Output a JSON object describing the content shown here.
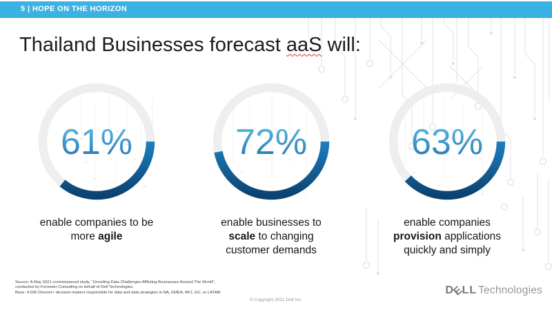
{
  "header": {
    "label": "5 | HOPE ON THE HORIZON",
    "bg_color": "#3BB2E4"
  },
  "title_rich": [
    [
      {
        "t": "Thailand Businesses forecast "
      },
      {
        "t": "aaS",
        "sq": true
      },
      {
        "t": " will:"
      }
    ]
  ],
  "chart_data": {
    "type": "pie",
    "variant": "donut-gauge-trio",
    "title": "Thailand Businesses forecast aaS will:",
    "gauges": [
      {
        "value": 61,
        "display": "61%",
        "label": "enable companies to be more agile"
      },
      {
        "value": 72,
        "display": "72%",
        "label": "enable businesses to scale to changing customer demands"
      },
      {
        "value": 63,
        "display": "63%",
        "label": "enable companies provision applications quickly and simply"
      }
    ],
    "colors": {
      "arc_gradient": [
        "#4FBCEA",
        "#1F86C6",
        "#0C4270"
      ],
      "track": "#EDEEF0",
      "number_gradient": [
        "#5FC0E9",
        "#1F6FAE"
      ],
      "header_bar": "#3BB2E4"
    },
    "arc_start_angle_deg": 0,
    "arc_direction": "clockwise"
  },
  "captions": [
    [
      [
        {
          "t": "enable companies to be"
        }
      ],
      [
        {
          "t": "more "
        },
        {
          "t": "agile",
          "b": true
        }
      ]
    ],
    [
      [
        {
          "t": "enable businesses to"
        }
      ],
      [
        {
          "t": "scale",
          "b": true
        },
        {
          "t": " to changing"
        }
      ],
      [
        {
          "t": "customer demands"
        }
      ]
    ],
    [
      [
        {
          "t": "enable companies"
        }
      ],
      [
        {
          "t": "provision",
          "b": true
        },
        {
          "t": " applications"
        }
      ],
      [
        {
          "t": "quickly and simply"
        }
      ]
    ]
  ],
  "footer": {
    "source_lines": [
      "Source: A May 2021 commissioned study, \"Unveiling Data Challenges Afflicting Businesses Around The World\",",
      "conducted by Forrester Consulting on behalf of Dell Technologies.",
      "Base: 4,036 Director+ decision-makers responsible for data and data strategies in NA, EMEA, APJ, GC, or LATAM"
    ],
    "copyright": "© Copyright 2021 Dell Inc.",
    "logo": {
      "d": "D",
      "e": "E",
      "ll": "LL",
      "suffix": "Technologies"
    }
  }
}
